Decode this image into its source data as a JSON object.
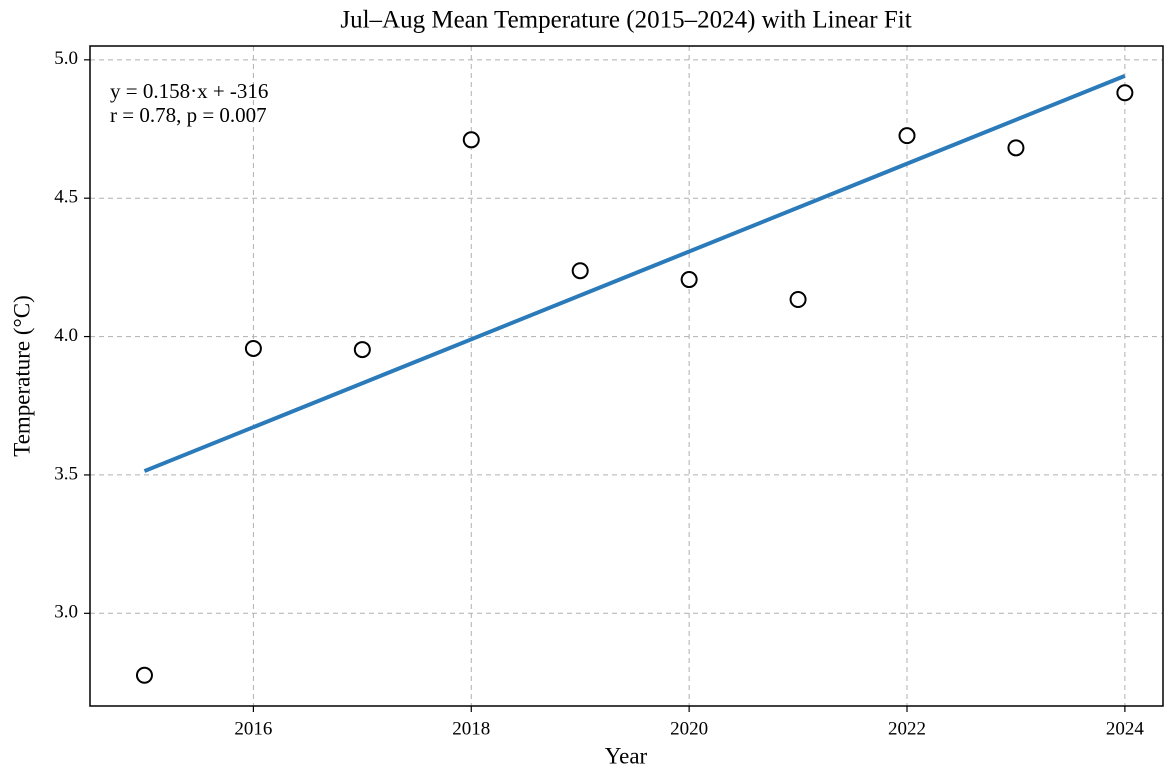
{
  "chart_data": {
    "type": "scatter",
    "title": "Jul–Aug Mean Temperature (2015–2024) with Linear Fit",
    "x_label": "Year",
    "y_label": "Temperature (°C)",
    "annotations": [
      "y = 0.158·x + -316",
      "r = 0.78, p = 0.007"
    ],
    "series": [
      {
        "type": "scatter",
        "x": [
          2015,
          2016,
          2017,
          2018,
          2019,
          2020,
          2021,
          2022,
          2023,
          2024
        ],
        "values": [
          2.776,
          3.957,
          3.953,
          4.711,
          4.238,
          4.206,
          4.134,
          4.726,
          4.682,
          4.881
        ],
        "color": "#000000",
        "fill": "#ffffff"
      },
      {
        "type": "line",
        "x": [
          2015,
          2024
        ],
        "values": [
          3.514,
          4.942
        ],
        "color": "#2b7bba"
      }
    ],
    "xlim": [
      2014.5,
      2024.35
    ],
    "ylim": [
      2.665,
      5.05
    ],
    "xticks": [
      2016,
      2018,
      2020,
      2022,
      2024
    ],
    "yticks": [
      {
        "value": 3,
        "label": "3.0"
      },
      {
        "value": 3.5,
        "label": "3.5"
      },
      {
        "value": 4,
        "label": "4.0"
      },
      {
        "value": 4.5,
        "label": "4.5"
      },
      {
        "value": 5,
        "label": "5.0"
      }
    ],
    "grid": true
  }
}
